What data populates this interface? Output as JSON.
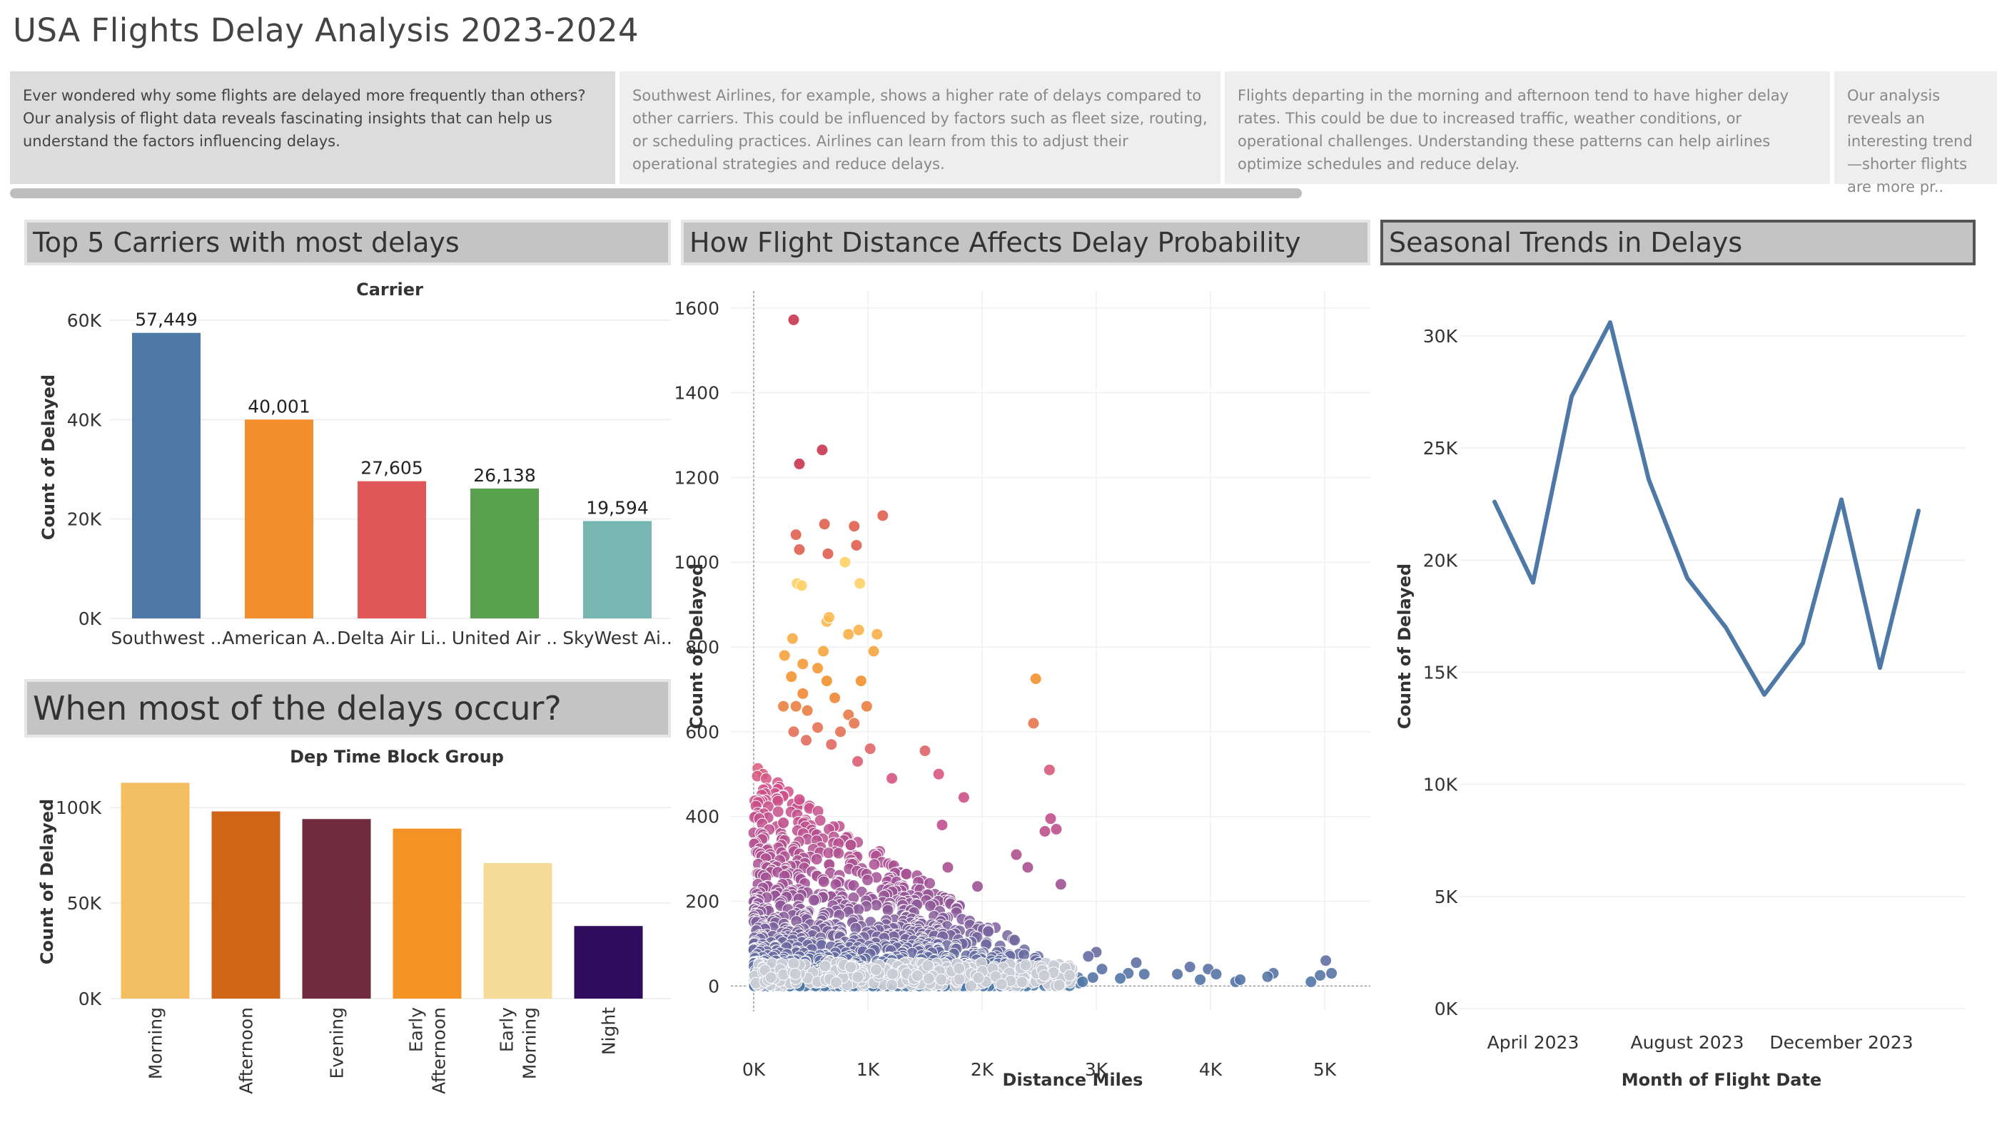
{
  "dashboard": {
    "title": "USA Flights Delay Analysis 2023-2024",
    "story_points": [
      "Ever wondered why some flights are delayed more frequently than others? Our analysis of flight data reveals fascinating insights that can help us understand the factors influencing delays.",
      "Southwest Airlines, for example, shows a higher rate of delays compared to other carriers. This could be influenced by factors such as fleet size, routing, or scheduling practices. Airlines can learn from this to adjust their operational strategies and reduce delays.",
      "Flights departing in the morning and  afternoon tend to have higher delay rates. This could be due to increased traffic, weather conditions, or operational challenges. Understanding these patterns can help airlines optimize schedules and reduce delay.",
      "Our analysis reveals an interesting trend—shorter flights are more pr.."
    ]
  },
  "panels": {
    "carriers": "Top 5 Carriers with most delays",
    "time_of_day": "When most of the delays occur?",
    "distance": "How Flight Distance Affects Delay Probability",
    "seasonal": "Seasonal Trends in Delays"
  },
  "chart_data": [
    {
      "id": "carriers",
      "type": "bar",
      "title": "Carrier",
      "ylabel": "Count of Delayed",
      "categories": [
        "Southwest ..",
        "American A..",
        "Delta Air Li..",
        "United Air ..",
        "SkyWest Ai.."
      ],
      "values": [
        57449,
        40001,
        27605,
        26138,
        19594
      ],
      "data_labels": [
        "57,449",
        "40,001",
        "27,605",
        "26,138",
        "19,594"
      ],
      "colors": [
        "#4e79a7",
        "#f28e2b",
        "#e15759",
        "#59a14f",
        "#76b7b2"
      ],
      "ylim": [
        0,
        63000
      ],
      "yticks": [
        0,
        20000,
        40000,
        60000
      ],
      "ytick_labels": [
        "0K",
        "20K",
        "40K",
        "60K"
      ]
    },
    {
      "id": "time_of_day",
      "type": "bar",
      "title": "Dep Time Block Group",
      "ylabel": "Count of Delayed",
      "categories": [
        "Morning",
        "Afternoon",
        "Evening",
        "Early Afternoon",
        "Early Morning",
        "Night"
      ],
      "category_lines": [
        [
          "Morning"
        ],
        [
          "Afternoon"
        ],
        [
          "Evening"
        ],
        [
          "Early",
          "Afternoon"
        ],
        [
          "Early",
          "Morning"
        ],
        [
          "Night"
        ]
      ],
      "values": [
        113000,
        98000,
        94000,
        89000,
        71000,
        38000
      ],
      "colors": [
        "#f4bf63",
        "#d06518",
        "#722b3e",
        "#f39325",
        "#f4dc98",
        "#2f0c5e"
      ],
      "ylim": [
        0,
        118000
      ],
      "yticks": [
        0,
        50000,
        100000
      ],
      "ytick_labels": [
        "0K",
        "50K",
        "100K"
      ]
    },
    {
      "id": "distance",
      "type": "scatter",
      "xlabel": "Distance Miles",
      "ylabel": "Count of Delayed",
      "xlim": [
        -200,
        5400
      ],
      "ylim": [
        -60,
        1640
      ],
      "xticks": [
        0,
        1000,
        2000,
        3000,
        4000,
        5000
      ],
      "xtick_labels": [
        "0K",
        "1K",
        "2K",
        "3K",
        "4K",
        "5K"
      ],
      "yticks": [
        0,
        200,
        400,
        600,
        800,
        1000,
        1200,
        1400,
        1600
      ],
      "ytick_labels": [
        "0",
        "200",
        "400",
        "600",
        "800",
        "1000",
        "1200",
        "1400",
        "1600"
      ],
      "color_scale": [
        "#4e79a7",
        "#a05195",
        "#d45087",
        "#f28e2b",
        "#ffd166"
      ],
      "points": [
        [
          350,
          1572
        ],
        [
          400,
          1232
        ],
        [
          600,
          1265
        ],
        [
          1130,
          1110
        ],
        [
          370,
          1065
        ],
        [
          620,
          1090
        ],
        [
          880,
          1085
        ],
        [
          380,
          950
        ],
        [
          420,
          945
        ],
        [
          650,
          1020
        ],
        [
          900,
          1040
        ],
        [
          930,
          950
        ],
        [
          400,
          1030
        ],
        [
          800,
          1000
        ],
        [
          640,
          860
        ],
        [
          340,
          820
        ],
        [
          830,
          830
        ],
        [
          1080,
          830
        ],
        [
          660,
          870
        ],
        [
          920,
          840
        ],
        [
          610,
          790
        ],
        [
          270,
          780
        ],
        [
          430,
          760
        ],
        [
          1050,
          790
        ],
        [
          560,
          750
        ],
        [
          330,
          730
        ],
        [
          940,
          720
        ],
        [
          430,
          690
        ],
        [
          710,
          680
        ],
        [
          640,
          720
        ],
        [
          370,
          660
        ],
        [
          260,
          660
        ],
        [
          470,
          650
        ],
        [
          990,
          660
        ],
        [
          830,
          640
        ],
        [
          880,
          620
        ],
        [
          560,
          610
        ],
        [
          760,
          600
        ],
        [
          350,
          600
        ],
        [
          460,
          580
        ],
        [
          680,
          570
        ],
        [
          1020,
          560
        ],
        [
          910,
          530
        ],
        [
          1500,
          555
        ],
        [
          1210,
          490
        ],
        [
          2470,
          725
        ],
        [
          2450,
          620
        ],
        [
          2590,
          510
        ],
        [
          2600,
          395
        ],
        [
          2650,
          370
        ],
        [
          2550,
          365
        ],
        [
          2690,
          240
        ],
        [
          260,
          385
        ],
        [
          400,
          440
        ],
        [
          1620,
          500
        ],
        [
          1840,
          445
        ],
        [
          1650,
          380
        ],
        [
          2300,
          310
        ],
        [
          2400,
          280
        ],
        [
          1700,
          280
        ],
        [
          1960,
          235
        ],
        [
          3350,
          55
        ],
        [
          3280,
          30
        ],
        [
          3210,
          18
        ],
        [
          3420,
          28
        ],
        [
          3710,
          28
        ],
        [
          3820,
          45
        ],
        [
          3910,
          15
        ],
        [
          3980,
          40
        ],
        [
          4050,
          28
        ],
        [
          4220,
          10
        ],
        [
          4260,
          15
        ],
        [
          4550,
          30
        ],
        [
          4500,
          22
        ],
        [
          4880,
          10
        ],
        [
          5010,
          60
        ],
        [
          5060,
          30
        ],
        [
          4960,
          25
        ],
        [
          3000,
          80
        ],
        [
          2930,
          70
        ],
        [
          3050,
          40
        ],
        [
          2970,
          20
        ],
        [
          2880,
          10
        ]
      ]
    },
    {
      "id": "seasonal",
      "type": "line",
      "xlabel": "Month of Flight Date",
      "ylabel": "Count of Delayed",
      "x": [
        "March 2023",
        "April 2023",
        "May 2023",
        "June 2023",
        "July 2023",
        "August 2023",
        "September 2023",
        "October 2023",
        "November 2023",
        "December 2023",
        "January 2024",
        "February 2024"
      ],
      "values": [
        22600,
        19000,
        27300,
        30600,
        23600,
        19200,
        17000,
        14000,
        16300,
        22700,
        15200,
        22200
      ],
      "color": "#4e79a7",
      "xtick_labels": [
        "April 2023",
        "August 2023",
        "December 2023"
      ],
      "ylim": [
        0,
        32000
      ],
      "yticks": [
        0,
        5000,
        10000,
        15000,
        20000,
        25000,
        30000
      ],
      "ytick_labels": [
        "0K",
        "5K",
        "10K",
        "15K",
        "20K",
        "25K",
        "30K"
      ]
    }
  ]
}
